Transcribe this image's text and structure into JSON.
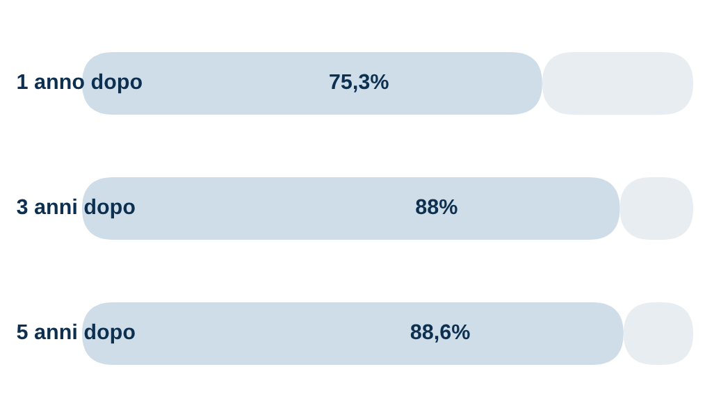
{
  "chart_data": {
    "type": "bar",
    "orientation": "horizontal",
    "stacked": true,
    "categories": [
      "1 anno dopo",
      "3 anni dopo",
      "5 anni dopo"
    ],
    "series": [
      {
        "color": "#cfdde9",
        "values": [
          75.3,
          88,
          88.6
        ],
        "value_labels": [
          "75,3%",
          "88%",
          "88,6%"
        ]
      },
      {
        "color": "#e8edf2",
        "values": [
          24.7,
          12,
          11.4
        ]
      }
    ],
    "xlim": [
      0,
      100
    ],
    "tick_labels": false
  }
}
